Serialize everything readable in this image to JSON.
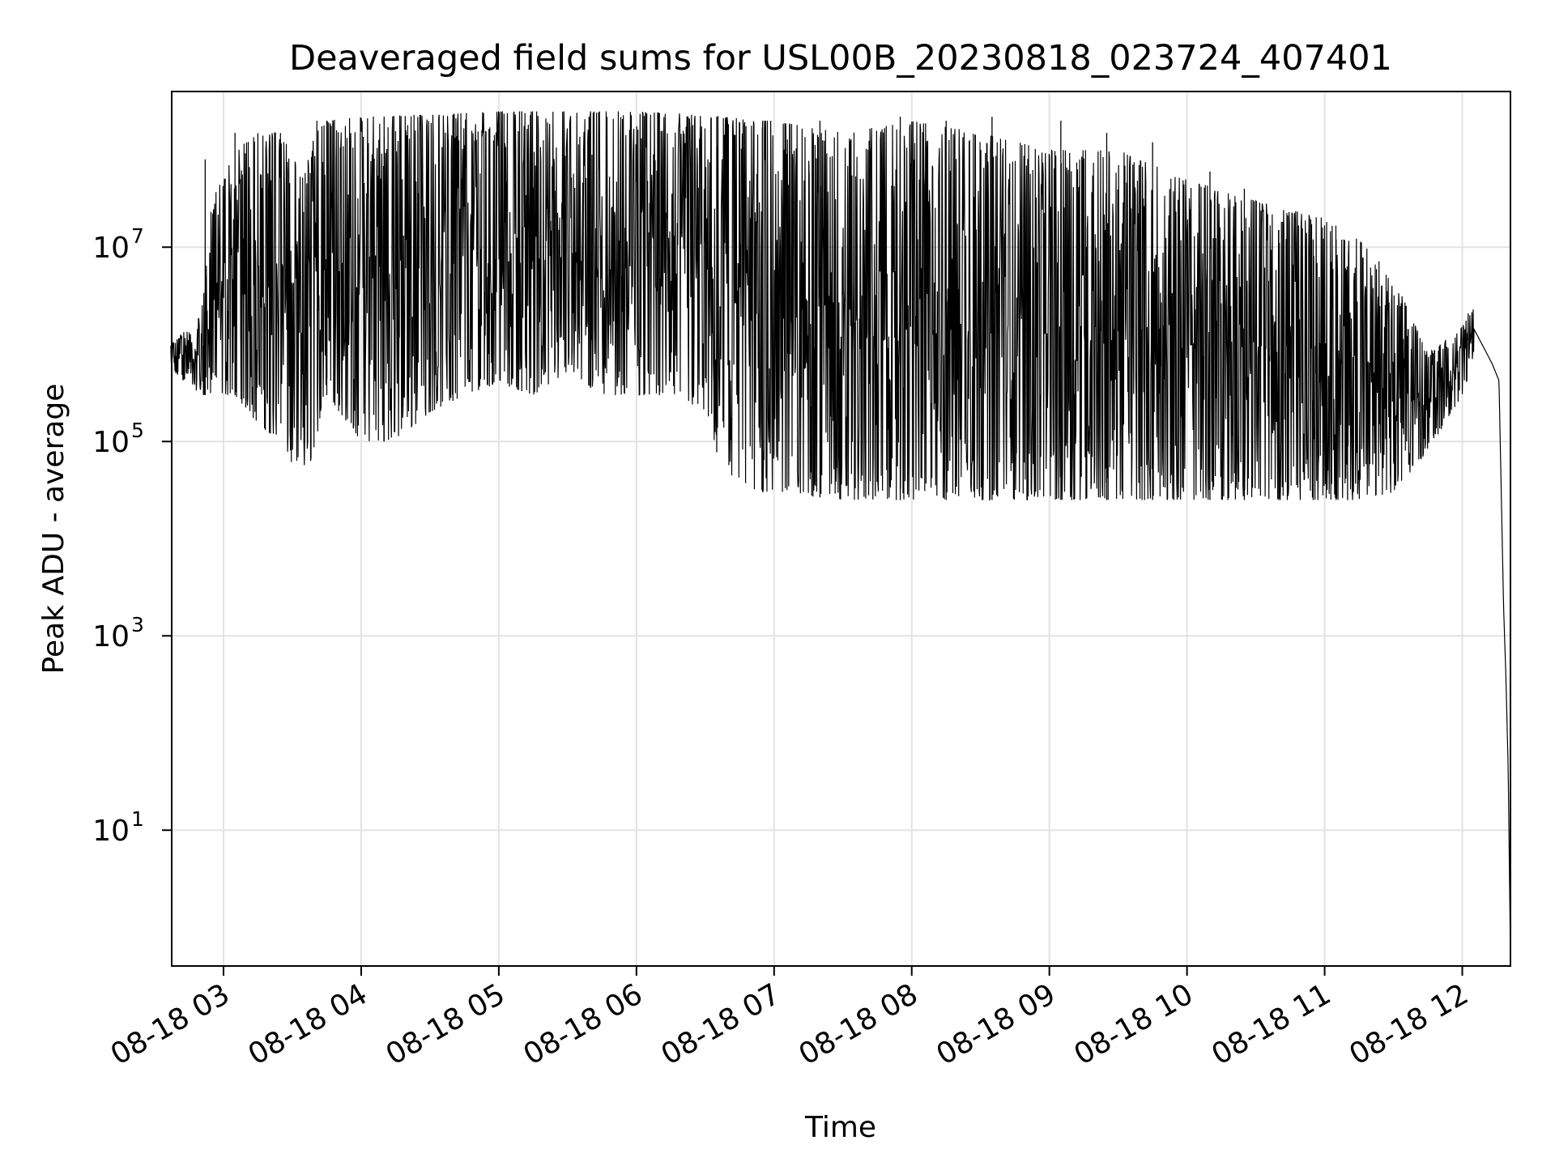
{
  "chart_data": {
    "type": "line",
    "title": "Deaveraged field sums for USL00B_20230818_023724_407401",
    "xlabel": "Time",
    "ylabel": "Peak ADU - average",
    "yscale": "log",
    "grid": true,
    "line_color": "#000000",
    "xlim": [
      "2023-08-18 02:37:24",
      "2023-08-18 12:21:00"
    ],
    "ylim": [
      0.4,
      400000000
    ],
    "x_ticks": [
      {
        "t": "2023-08-18 03:00",
        "label": "08-18 03"
      },
      {
        "t": "2023-08-18 04:00",
        "label": "08-18 04"
      },
      {
        "t": "2023-08-18 05:00",
        "label": "08-18 05"
      },
      {
        "t": "2023-08-18 06:00",
        "label": "08-18 06"
      },
      {
        "t": "2023-08-18 07:00",
        "label": "08-18 07"
      },
      {
        "t": "2023-08-18 08:00",
        "label": "08-18 08"
      },
      {
        "t": "2023-08-18 09:00",
        "label": "08-18 09"
      },
      {
        "t": "2023-08-18 10:00",
        "label": "08-18 10"
      },
      {
        "t": "2023-08-18 11:00",
        "label": "08-18 11"
      },
      {
        "t": "2023-08-18 12:00",
        "label": "08-18 12"
      }
    ],
    "y_ticks": [
      {
        "value": 10,
        "base": "10",
        "exp": "1"
      },
      {
        "value": 1000,
        "base": "10",
        "exp": "3"
      },
      {
        "value": 100000,
        "base": "10",
        "exp": "5"
      },
      {
        "value": 10000000,
        "base": "10",
        "exp": "7"
      }
    ],
    "series": [
      {
        "x": [
          "2023-08-18 02:37",
          "2023-08-18 02:45",
          "2023-08-18 02:50",
          "2023-08-18 02:55",
          "2023-08-18 03:05",
          "2023-08-18 03:15",
          "2023-08-18 03:25",
          "2023-08-18 03:35",
          "2023-08-18 03:40",
          "2023-08-18 03:45",
          "2023-08-18 04:00",
          "2023-08-18 04:15",
          "2023-08-18 04:30",
          "2023-08-18 04:45",
          "2023-08-18 05:00",
          "2023-08-18 05:15",
          "2023-08-18 05:30",
          "2023-08-18 05:45",
          "2023-08-18 06:00",
          "2023-08-18 06:15",
          "2023-08-18 06:30",
          "2023-08-18 06:40",
          "2023-08-18 06:50",
          "2023-08-18 07:00",
          "2023-08-18 07:30",
          "2023-08-18 08:00",
          "2023-08-18 08:30",
          "2023-08-18 09:00",
          "2023-08-18 09:30",
          "2023-08-18 10:00",
          "2023-08-18 10:30",
          "2023-08-18 11:00",
          "2023-08-18 11:15",
          "2023-08-18 11:30",
          "2023-08-18 11:45",
          "2023-08-18 12:00",
          "2023-08-18 12:05",
          "2023-08-18 12:10",
          "2023-08-18 12:13",
          "2023-08-18 12:16",
          "2023-08-18 12:18",
          "2023-08-18 12:19",
          "2023-08-18 12:20",
          "2023-08-18 12:21"
        ],
        "upper": [
          1000000,
          1500000,
          2000000,
          30000000,
          100000000,
          150000000,
          150000000,
          50000000,
          200000000,
          200000000,
          220000000,
          230000000,
          230000000,
          240000000,
          250000000,
          250000000,
          250000000,
          250000000,
          250000000,
          240000000,
          230000000,
          220000000,
          200000000,
          200000000,
          150000000,
          200000000,
          150000000,
          100000000,
          100000000,
          50000000,
          30000000,
          20000000,
          12000000,
          5000000,
          800000,
          1500000,
          3000000,
          1500000,
          1000000,
          600000,
          2000,
          500,
          50,
          0.5
        ],
        "lower": [
          500000,
          400000,
          300000,
          300000,
          300000,
          150000,
          100000,
          30000,
          100000,
          300000,
          100000,
          100000,
          200000,
          300000,
          400000,
          300000,
          500000,
          300000,
          300000,
          300000,
          200000,
          30000,
          30000,
          30000,
          25000,
          25000,
          25000,
          25000,
          25000,
          25000,
          25000,
          25000,
          25000,
          30000,
          80000,
          300000,
          700000,
          500000,
          400000,
          300000,
          2000,
          300,
          40,
          0.5
        ],
        "spikes": [
          [
            "2023-08-18 02:52",
            80000000
          ],
          [
            "2023-08-18 03:05",
            150000000
          ],
          [
            "2023-08-18 03:20",
            120000000
          ],
          [
            "2023-08-18 03:45",
            200000000
          ],
          [
            "2023-08-18 04:10",
            220000000
          ],
          [
            "2023-08-18 04:40",
            230000000
          ],
          [
            "2023-08-18 05:10",
            250000000
          ],
          [
            "2023-08-18 05:40",
            250000000
          ],
          [
            "2023-08-18 06:10",
            240000000
          ],
          [
            "2023-08-18 06:35",
            220000000
          ],
          [
            "2023-08-18 06:55",
            200000000
          ],
          [
            "2023-08-18 07:20",
            200000000
          ],
          [
            "2023-08-18 07:55",
            220000000
          ],
          [
            "2023-08-18 08:15",
            200000000
          ],
          [
            "2023-08-18 08:35",
            220000000
          ],
          [
            "2023-08-18 09:05",
            200000000
          ],
          [
            "2023-08-18 09:25",
            150000000
          ],
          [
            "2023-08-18 09:45",
            120000000
          ],
          [
            "2023-08-18 10:10",
            60000000
          ],
          [
            "2023-08-18 10:25",
            40000000
          ],
          [
            "2023-08-18 10:40",
            15000000
          ],
          [
            "2023-08-18 10:55",
            12000000
          ],
          [
            "2023-08-18 11:05",
            12000000
          ],
          [
            "2023-08-18 11:10",
            2000000
          ]
        ]
      }
    ]
  }
}
